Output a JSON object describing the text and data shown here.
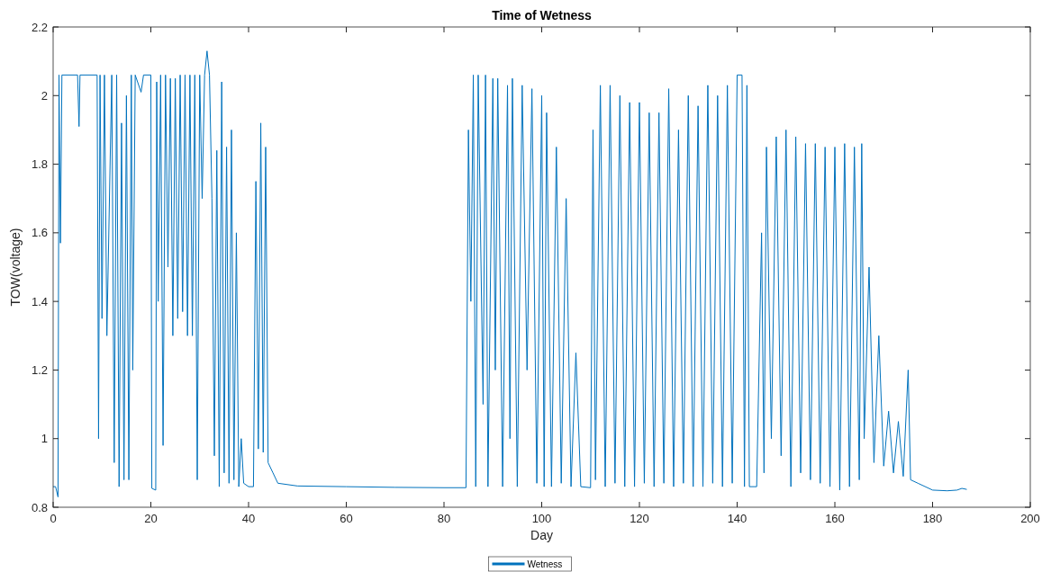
{
  "chart_data": {
    "type": "line",
    "title": "Time of Wetness",
    "xlabel": "Day",
    "ylabel": "TOW(voltage)",
    "xlim": [
      0,
      200
    ],
    "xticks": [
      0,
      20,
      40,
      60,
      80,
      100,
      120,
      140,
      160,
      180,
      200
    ],
    "ylim": [
      0.8,
      2.2
    ],
    "yticks": [
      0.8,
      1,
      1.2,
      1.4,
      1.6,
      1.8,
      2,
      2.2
    ],
    "grid": false,
    "legend": "bottom",
    "marker": "none",
    "line_style": "solid",
    "series": [
      {
        "name": "Wetness",
        "color": "#0072bd",
        "x": [
          0,
          0.5,
          1,
          1.2,
          1.5,
          1.8,
          5,
          5.3,
          5.5,
          9,
          9.3,
          9.6,
          10,
          10.5,
          11,
          12,
          12.5,
          13,
          13.5,
          14,
          14.5,
          15,
          15.5,
          16,
          16.3,
          16.8,
          18,
          18.5,
          20,
          20.2,
          21,
          21.2,
          21.5,
          22,
          22.5,
          23,
          23.5,
          24,
          24.5,
          25,
          25.5,
          26,
          26.5,
          27,
          27.5,
          28,
          28.5,
          29,
          29.5,
          30,
          30.5,
          31,
          31.5,
          32,
          32.5,
          33,
          33.5,
          34,
          34.5,
          35,
          35.5,
          36,
          36.5,
          37,
          37.5,
          38,
          38.5,
          39,
          40,
          41,
          41.5,
          42,
          42.5,
          43,
          43.5,
          44,
          45,
          46,
          50,
          60,
          70,
          80,
          84.5,
          85,
          85.5,
          86,
          86.5,
          87,
          88,
          88.5,
          89,
          90,
          90.5,
          91,
          92,
          93,
          93.5,
          94,
          95,
          96,
          97,
          98,
          99,
          100,
          100.5,
          101,
          102,
          103,
          104,
          105,
          106,
          107,
          108,
          110,
          110.5,
          111,
          112,
          113,
          114,
          115,
          116,
          117,
          118,
          119,
          120,
          121,
          122,
          123,
          124,
          125,
          126,
          127,
          128,
          129,
          130,
          131,
          132,
          133,
          134,
          135,
          136,
          137,
          138,
          139,
          140,
          141,
          141.5,
          142,
          142.5,
          144,
          145,
          145.5,
          146,
          147,
          148,
          149,
          150,
          151,
          152,
          153,
          154,
          155,
          156,
          157,
          158,
          159,
          160,
          161,
          162,
          163,
          164,
          165,
          165.5,
          166,
          167,
          168,
          169,
          170,
          171,
          172,
          173,
          174,
          175,
          175.5,
          177,
          180,
          183,
          185,
          186,
          187
        ],
        "values": [
          0.86,
          0.86,
          0.83,
          2.06,
          1.57,
          2.06,
          2.06,
          1.91,
          2.06,
          2.06,
          1.0,
          2.06,
          1.35,
          2.06,
          1.3,
          2.06,
          0.93,
          2.06,
          0.86,
          1.92,
          0.88,
          2.0,
          0.88,
          2.06,
          1.2,
          2.06,
          2.01,
          2.06,
          2.06,
          0.855,
          0.85,
          2.04,
          1.4,
          2.06,
          0.98,
          2.06,
          1.5,
          2.05,
          1.3,
          2.05,
          1.35,
          2.06,
          1.37,
          2.06,
          1.3,
          2.06,
          1.3,
          2.06,
          0.88,
          2.06,
          1.7,
          2.06,
          2.13,
          2.06,
          1.7,
          0.95,
          1.84,
          0.86,
          2.04,
          0.9,
          1.85,
          0.87,
          1.9,
          0.88,
          1.6,
          0.86,
          1.0,
          0.87,
          0.86,
          0.86,
          1.75,
          0.97,
          1.92,
          0.96,
          1.85,
          0.93,
          0.9,
          0.87,
          0.862,
          0.86,
          0.858,
          0.857,
          0.857,
          1.9,
          1.4,
          2.06,
          0.86,
          2.06,
          1.1,
          2.06,
          0.86,
          2.05,
          1.2,
          2.05,
          0.86,
          2.03,
          1.0,
          2.05,
          0.86,
          2.03,
          1.2,
          2.02,
          0.87,
          2.0,
          0.86,
          1.95,
          0.86,
          1.85,
          0.87,
          1.7,
          0.86,
          1.25,
          0.86,
          0.857,
          1.9,
          0.88,
          2.03,
          0.86,
          2.03,
          0.87,
          2.0,
          0.86,
          1.98,
          0.86,
          1.98,
          0.87,
          1.95,
          0.86,
          1.95,
          0.87,
          2.02,
          0.86,
          1.9,
          0.87,
          2.0,
          0.86,
          1.97,
          0.86,
          2.03,
          0.87,
          2.0,
          0.86,
          2.03,
          0.87,
          2.06,
          2.06,
          0.86,
          2.03,
          0.86,
          0.86,
          1.6,
          0.9,
          1.85,
          1.0,
          1.88,
          0.95,
          1.9,
          0.86,
          1.88,
          0.9,
          1.86,
          0.88,
          1.86,
          0.87,
          1.85,
          0.86,
          1.85,
          0.85,
          1.86,
          0.86,
          1.85,
          0.88,
          1.86,
          1.0,
          1.5,
          0.93,
          1.3,
          0.92,
          1.08,
          0.9,
          1.05,
          0.89,
          1.2,
          0.88,
          0.87,
          0.85,
          0.848,
          0.85,
          0.855,
          0.852
        ]
      }
    ]
  }
}
